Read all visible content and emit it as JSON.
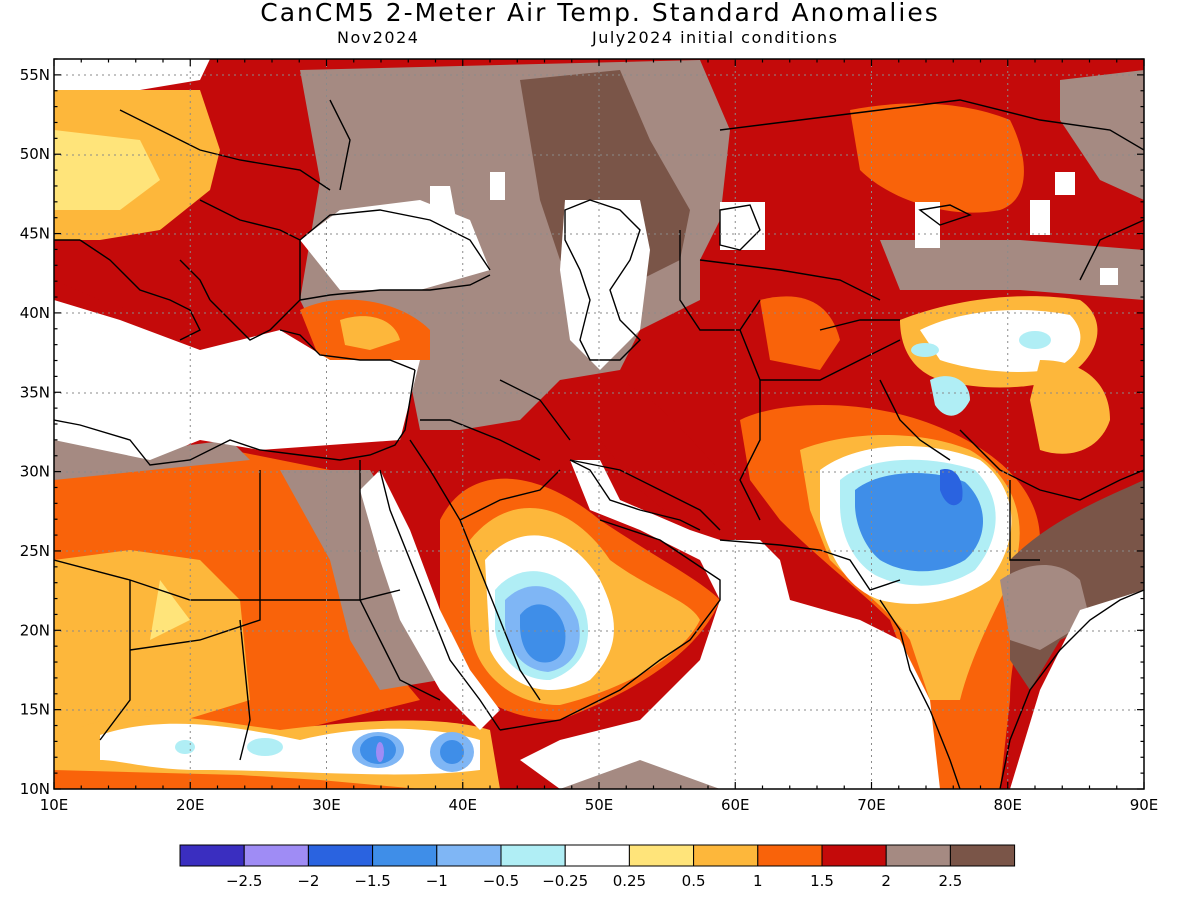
{
  "title": "CanCM5 2-Meter Air Temp. Standard Anomalies",
  "subtitle_left": "Nov2024",
  "subtitle_right": "July2024 initial conditions",
  "map": {
    "lat_labels": [
      "55N",
      "50N",
      "45N",
      "40N",
      "35N",
      "30N",
      "25N",
      "20N",
      "15N",
      "10N"
    ],
    "lon_labels": [
      "10E",
      "20E",
      "30E",
      "40E",
      "50E",
      "60E",
      "70E",
      "80E",
      "90E"
    ],
    "lon_range": [
      10,
      90
    ],
    "lat_range": [
      10,
      56
    ]
  },
  "colorbar": {
    "labels": [
      "-2.5",
      "-2",
      "-1.5",
      "-1",
      "-0.5",
      "-0.25",
      "0.25",
      "0.5",
      "1",
      "1.5",
      "2",
      "2.5"
    ],
    "colors": [
      "#3a2ec0",
      "#9f8cf5",
      "#2a63e0",
      "#3f8ee8",
      "#7fb6f5",
      "#b0eef5",
      "#ffffff",
      "#ffe47a",
      "#fdb73b",
      "#f9630a",
      "#c40a0a",
      "#a58a82",
      "#7a5548"
    ]
  }
}
